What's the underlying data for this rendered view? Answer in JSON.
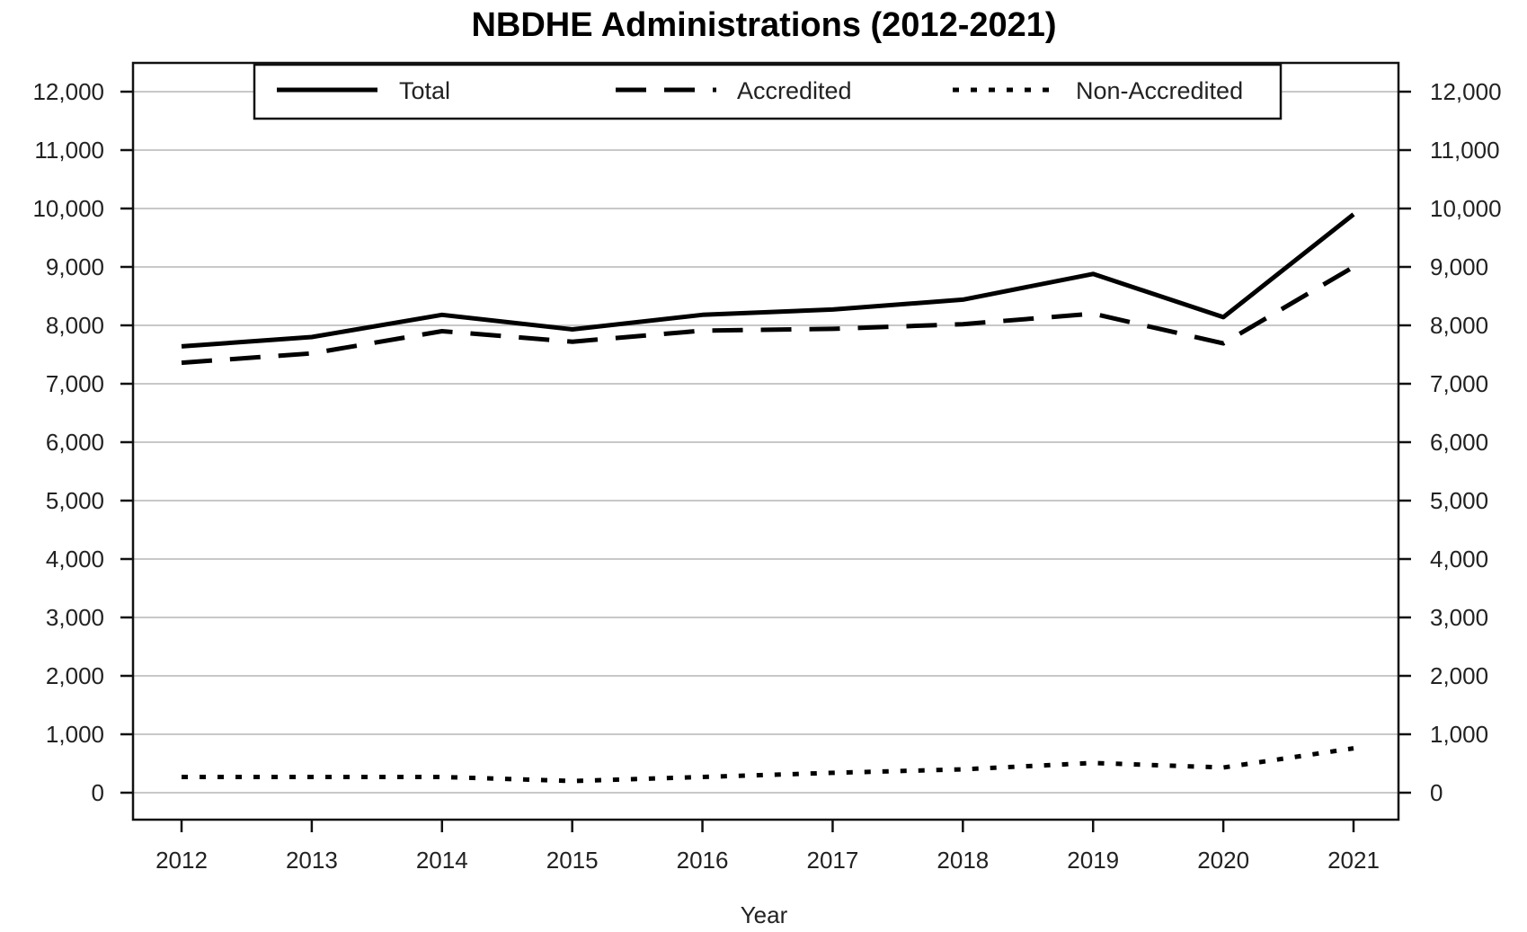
{
  "chart_data": {
    "type": "line",
    "title": "NBDHE Administrations (2012-2021)",
    "xlabel": "Year",
    "ylabel": "",
    "categories": [
      "2012",
      "2013",
      "2014",
      "2015",
      "2016",
      "2017",
      "2018",
      "2019",
      "2020",
      "2021"
    ],
    "ylim": [
      0,
      12000
    ],
    "yticks": [
      0,
      1000,
      2000,
      3000,
      4000,
      5000,
      6000,
      7000,
      8000,
      9000,
      10000,
      11000,
      12000
    ],
    "ytick_labels": [
      "0",
      "1,000",
      "2,000",
      "3,000",
      "4,000",
      "5,000",
      "6,000",
      "7,000",
      "8,000",
      "9,000",
      "10,000",
      "11,000",
      "12,000"
    ],
    "grid": "horizontal",
    "legend_position": "top",
    "series": [
      {
        "name": "Total",
        "style": "solid",
        "values": [
          7640,
          7800,
          8180,
          7930,
          8180,
          8270,
          8440,
          8880,
          8140,
          9900
        ]
      },
      {
        "name": "Accredited",
        "style": "dashed",
        "values": [
          7360,
          7520,
          7900,
          7720,
          7910,
          7940,
          8020,
          8200,
          7690,
          9000
        ]
      },
      {
        "name": "Non-Accredited",
        "style": "dotted",
        "values": [
          270,
          270,
          270,
          200,
          270,
          340,
          400,
          510,
          430,
          760
        ]
      }
    ],
    "colors": {
      "line": "#000000",
      "grid": "#c8c8c8",
      "background": "#ffffff"
    }
  }
}
